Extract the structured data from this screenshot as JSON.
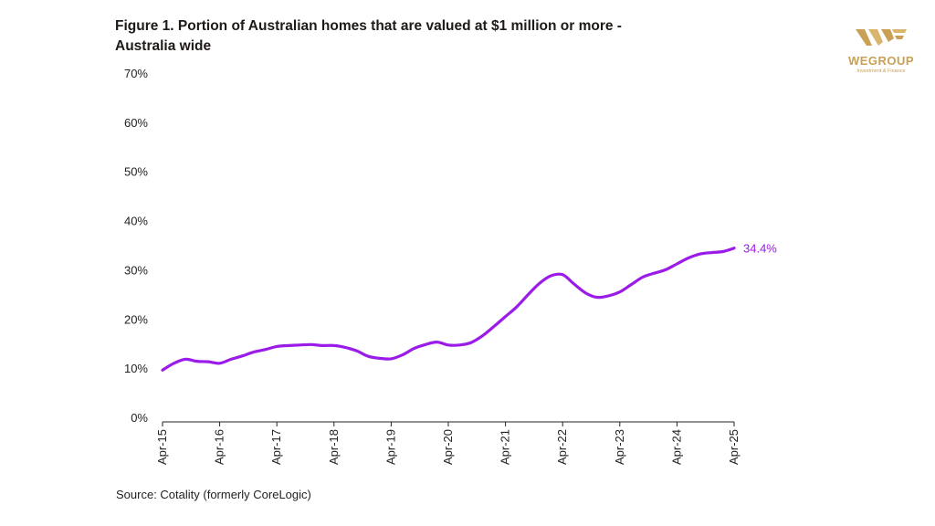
{
  "title": "Figure 1. Portion of Australian homes that are valued at $1 million or more - Australia wide",
  "source": "Source: Cotality (formerly CoreLogic)",
  "logo": {
    "name": "WEGROUP",
    "subtitle": "Investment & Finance",
    "color": "#c9a055"
  },
  "colors": {
    "series": "#9b1be8",
    "axis": "#222222"
  },
  "chart_data": {
    "type": "line",
    "title": "Figure 1. Portion of Australian homes that are valued at $1 million or more - Australia wide",
    "xlabel": "",
    "ylabel": "",
    "ylim": [
      0,
      70
    ],
    "y_ticks": [
      0,
      10,
      20,
      30,
      40,
      50,
      60,
      70
    ],
    "y_tick_labels": [
      "0%",
      "10%",
      "20%",
      "30%",
      "40%",
      "50%",
      "60%",
      "70%"
    ],
    "x_ticks": [
      0,
      1,
      2,
      3,
      4,
      5,
      6,
      7,
      8,
      9,
      10
    ],
    "x_tick_labels": [
      "Apr-15",
      "Apr-16",
      "Apr-17",
      "Apr-18",
      "Apr-19",
      "Apr-20",
      "Apr-21",
      "Apr-22",
      "Apr-23",
      "Apr-24",
      "Apr-25"
    ],
    "grid": false,
    "series": [
      {
        "name": "Australia wide",
        "end_label": "34.4%",
        "x": [
          0,
          0.2,
          0.4,
          0.6,
          0.8,
          1.0,
          1.2,
          1.4,
          1.6,
          1.8,
          2.0,
          2.2,
          2.4,
          2.6,
          2.8,
          3.0,
          3.2,
          3.4,
          3.6,
          3.8,
          4.0,
          4.2,
          4.4,
          4.6,
          4.8,
          5.0,
          5.2,
          5.4,
          5.6,
          5.8,
          6.0,
          6.2,
          6.4,
          6.6,
          6.8,
          7.0,
          7.2,
          7.4,
          7.6,
          7.8,
          8.0,
          8.2,
          8.4,
          8.6,
          8.8,
          9.0,
          9.2,
          9.4,
          9.6,
          9.8,
          10.0
        ],
        "values": [
          9.6,
          11.0,
          11.8,
          11.4,
          11.3,
          11.0,
          11.8,
          12.5,
          13.3,
          13.8,
          14.4,
          14.6,
          14.7,
          14.8,
          14.6,
          14.6,
          14.2,
          13.5,
          12.4,
          12.0,
          11.9,
          12.7,
          14.0,
          14.8,
          15.3,
          14.7,
          14.7,
          15.2,
          16.6,
          18.5,
          20.5,
          22.5,
          25.0,
          27.3,
          28.8,
          29.0,
          27.1,
          25.3,
          24.4,
          24.7,
          25.5,
          27.0,
          28.5,
          29.3,
          30.0,
          31.2,
          32.4,
          33.2,
          33.5,
          33.7,
          34.4
        ]
      }
    ]
  }
}
